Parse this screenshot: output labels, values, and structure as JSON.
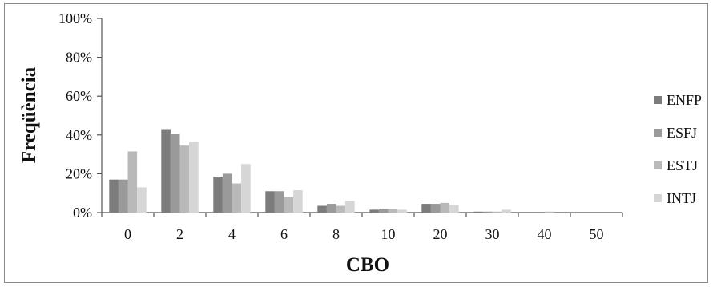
{
  "chart_data": {
    "type": "bar",
    "categories": [
      "0",
      "2",
      "4",
      "6",
      "8",
      "10",
      "20",
      "30",
      "40",
      "50"
    ],
    "series": [
      {
        "name": "ENFP",
        "values": [
          17,
          43,
          18.5,
          11,
          3.5,
          1.5,
          4.5,
          0.5,
          0,
          0
        ],
        "color": "#7c7c7c"
      },
      {
        "name": "ESFJ",
        "values": [
          17,
          40.5,
          20,
          11,
          4.5,
          2,
          4.5,
          0.5,
          0,
          0
        ],
        "color": "#9a9a9a"
      },
      {
        "name": "ESTJ",
        "values": [
          31.5,
          34.5,
          15,
          8,
          3.5,
          2,
          5,
          0.5,
          0.5,
          0
        ],
        "color": "#b9b9b9"
      },
      {
        "name": "INTJ",
        "values": [
          13,
          36.5,
          25,
          11.5,
          6,
          1.5,
          4,
          1.5,
          0,
          0
        ],
        "color": "#d6d6d6"
      }
    ],
    "xlabel": "CBO",
    "ylabel": "Freqüència",
    "ylim": [
      0,
      100
    ],
    "yticks": [
      "0%",
      "20%",
      "40%",
      "60%",
      "80%",
      "100%"
    ],
    "grid": false,
    "legend": "right"
  }
}
